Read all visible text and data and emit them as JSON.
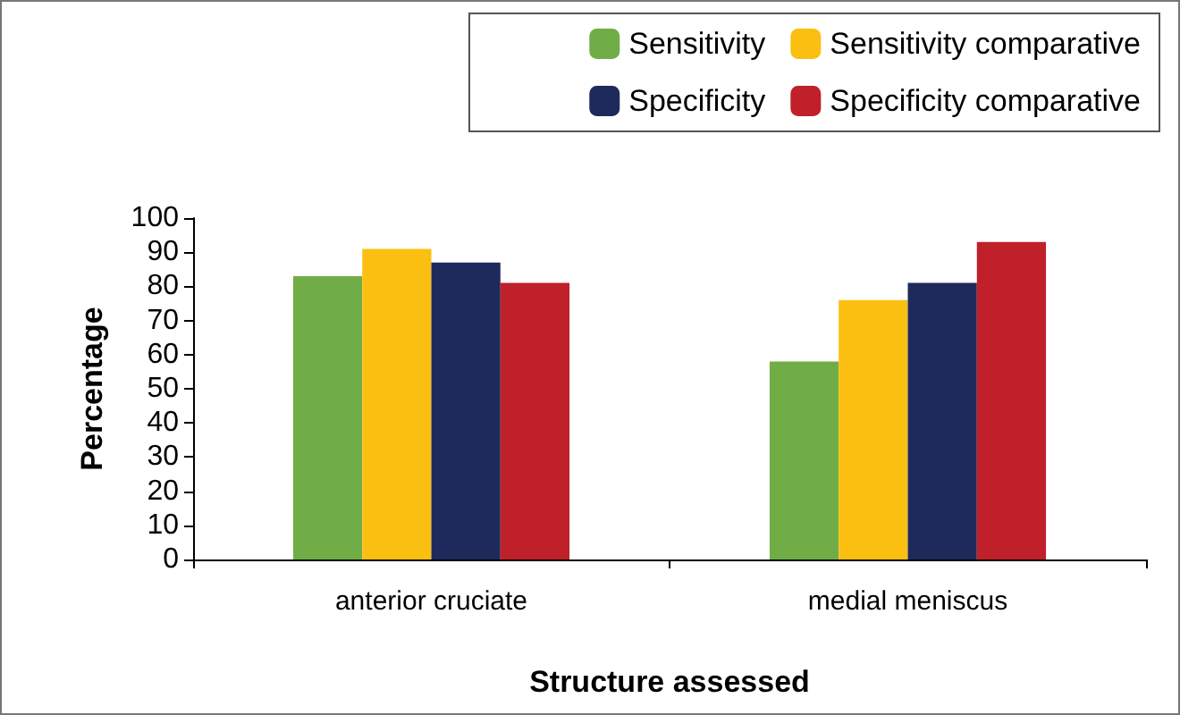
{
  "chart_data": {
    "type": "bar",
    "xlabel": "Structure assessed",
    "ylabel": "Percentage",
    "categories": [
      "anterior cruciate",
      "medial meniscus"
    ],
    "series": [
      {
        "name": "Sensitivity",
        "color": "#70ad47",
        "values": [
          83,
          58
        ]
      },
      {
        "name": "Sensitivity comparative",
        "color": "#fbbf12",
        "values": [
          91,
          76
        ]
      },
      {
        "name": "Specificity",
        "color": "#1f2a5c",
        "values": [
          87,
          81
        ]
      },
      {
        "name": "Specificity comparative",
        "color": "#c0202a",
        "values": [
          81,
          93
        ]
      }
    ],
    "ylim": [
      0,
      100
    ],
    "yticks": [
      0,
      10,
      20,
      30,
      40,
      50,
      60,
      70,
      80,
      90,
      100
    ],
    "grid": false,
    "legend": "top right"
  }
}
